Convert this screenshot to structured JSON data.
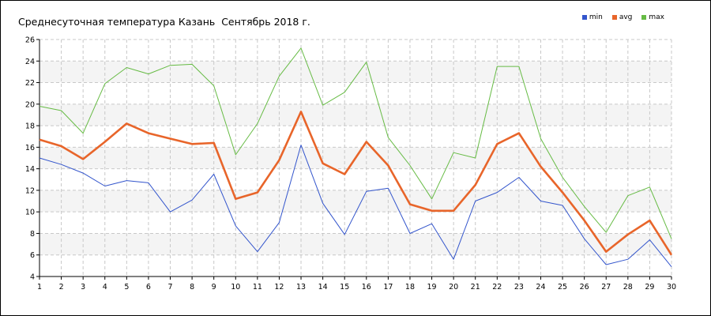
{
  "chart_data": {
    "type": "line",
    "title": "Среднесуточная температура Казань  Сентябрь 2018 г.",
    "xlabel": "",
    "ylabel": "",
    "x": [
      1,
      2,
      3,
      4,
      5,
      6,
      7,
      8,
      9,
      10,
      11,
      12,
      13,
      14,
      15,
      16,
      17,
      18,
      19,
      20,
      21,
      22,
      23,
      24,
      25,
      26,
      27,
      28,
      29,
      30
    ],
    "xlim": [
      1,
      30
    ],
    "ylim": [
      4,
      26
    ],
    "yticks": [
      4,
      6,
      8,
      10,
      12,
      14,
      16,
      18,
      20,
      22,
      24,
      26
    ],
    "grid": true,
    "legend_position": "top-right",
    "series": [
      {
        "name": "min",
        "color": "#3355cc",
        "values": [
          15.0,
          14.4,
          13.6,
          12.4,
          12.9,
          12.7,
          10.0,
          11.1,
          13.5,
          8.7,
          6.3,
          9.0,
          16.2,
          10.8,
          7.9,
          11.9,
          12.2,
          8.0,
          8.9,
          5.6,
          11.0,
          11.8,
          13.2,
          11.0,
          10.6,
          7.5,
          5.1,
          5.6,
          7.4,
          4.9
        ]
      },
      {
        "name": "avg",
        "color": "#e8652a",
        "values": [
          16.7,
          16.1,
          14.9,
          16.5,
          18.2,
          17.3,
          16.8,
          16.3,
          16.4,
          11.2,
          11.8,
          14.8,
          19.3,
          14.5,
          13.5,
          16.5,
          14.3,
          10.7,
          10.1,
          10.1,
          12.5,
          16.3,
          17.3,
          14.2,
          11.8,
          9.2,
          6.3,
          7.9,
          9.2,
          6.0
        ]
      },
      {
        "name": "max",
        "color": "#66bb44",
        "values": [
          19.8,
          19.4,
          17.3,
          21.9,
          23.4,
          22.8,
          23.6,
          23.7,
          21.7,
          15.3,
          18.2,
          22.6,
          25.2,
          19.9,
          21.1,
          23.9,
          16.9,
          14.3,
          11.2,
          15.5,
          15.0,
          23.5,
          23.5,
          16.8,
          13.2,
          10.5,
          8.1,
          11.5,
          12.3,
          7.5
        ]
      }
    ]
  }
}
